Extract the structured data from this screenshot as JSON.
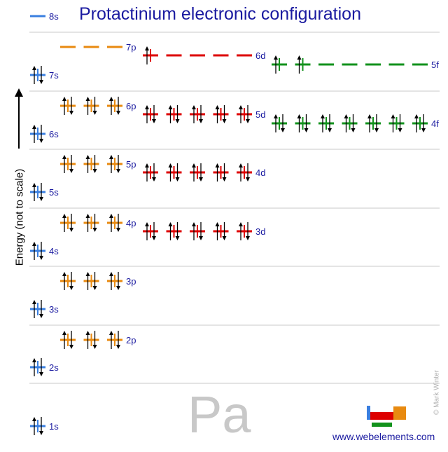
{
  "title": "Protactinium electronic configuration",
  "y_axis_label": "Energy (not to scale)",
  "element_symbol": "Pa",
  "credit": "© Mark Winter",
  "website": "www.webelements.com",
  "colors": {
    "s": "#3a7fe0",
    "p": "#e88a10",
    "d": "#dd0000",
    "f": "#12921c",
    "title": "#1a1aa0",
    "separator": "#c8c8c8"
  },
  "subshells": [
    {
      "label": "1s",
      "type": "s",
      "electrons": 2
    },
    {
      "label": "2s",
      "type": "s",
      "electrons": 2
    },
    {
      "label": "2p",
      "type": "p",
      "electrons": 6
    },
    {
      "label": "3s",
      "type": "s",
      "electrons": 2
    },
    {
      "label": "3p",
      "type": "p",
      "electrons": 6
    },
    {
      "label": "4s",
      "type": "s",
      "electrons": 2
    },
    {
      "label": "3d",
      "type": "d",
      "electrons": 10
    },
    {
      "label": "4p",
      "type": "p",
      "electrons": 6
    },
    {
      "label": "5s",
      "type": "s",
      "electrons": 2
    },
    {
      "label": "4d",
      "type": "d",
      "electrons": 10
    },
    {
      "label": "5p",
      "type": "p",
      "electrons": 6
    },
    {
      "label": "6s",
      "type": "s",
      "electrons": 2
    },
    {
      "label": "4f",
      "type": "f",
      "electrons": 14
    },
    {
      "label": "5d",
      "type": "d",
      "electrons": 10
    },
    {
      "label": "6p",
      "type": "p",
      "electrons": 6
    },
    {
      "label": "7s",
      "type": "s",
      "electrons": 2
    },
    {
      "label": "5f",
      "type": "f",
      "electrons": 2
    },
    {
      "label": "6d",
      "type": "d",
      "electrons": 1
    },
    {
      "label": "7p",
      "type": "p",
      "electrons": 0
    },
    {
      "label": "8s",
      "type": "s",
      "electrons": 0
    }
  ]
}
